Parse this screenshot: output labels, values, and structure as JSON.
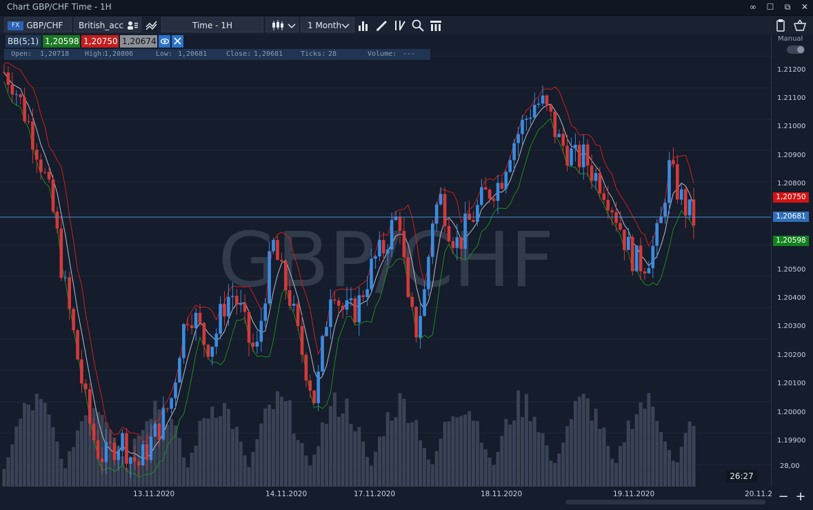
{
  "window": {
    "title": "Chart GBP/CHF Time - 1H",
    "buttons": {
      "link": "∞",
      "restore": "☐",
      "maximize": "⧉",
      "close": "✕"
    }
  },
  "toolbar": {
    "symbol_badge": "FX",
    "symbol": "GBP/CHF",
    "account": "British_acc",
    "timeframe": "Time - 1H",
    "period": "1 Month",
    "icons": [
      "compare-icon",
      "candlestick-type-icon",
      "chevron-down-icon",
      "bar-chart-icon",
      "draw-icon",
      "fibonacci-icon",
      "zoom-icon",
      "template-icon",
      "clipboard-icon",
      "basket-icon"
    ]
  },
  "indicator": {
    "name": "BB(5;1)",
    "lower": "1,20598",
    "upper": "1,20750",
    "middle": "1,20674"
  },
  "ohlc": {
    "open_label": "Open:",
    "open": "1,20718",
    "high_label": "High:",
    "high": "1,20806",
    "low_label": "Low:",
    "low": "1,20681",
    "close_label": "Close:",
    "close": "1,20681",
    "ticks_label": "Ticks:",
    "ticks": "28",
    "volume_label": "Volume:",
    "volume": "---"
  },
  "watermark": "GBP/CHF",
  "price_axis": {
    "mode": "Manual",
    "labels": [
      "1.21200",
      "1.21100",
      "1.21000",
      "1.20900",
      "1.20800",
      "1.20500",
      "1.20400",
      "1.20300",
      "1.20200",
      "1.20100",
      "1.20000",
      "1.19900"
    ],
    "current_price": "1,20681",
    "upper_band_tag": "1,20750",
    "lower_band_tag": "1,20598",
    "volume_label": "28,00"
  },
  "time_axis": {
    "labels": [
      "13.11.2020",
      "14.11.2020",
      "17.11.2020",
      "18.11.2020",
      "19.11.2020",
      "20.11.2"
    ],
    "countdown": "26:27"
  },
  "zoom": {
    "minus": "−",
    "plus": "+"
  },
  "colors": {
    "up": "#3b8be0",
    "down": "#d23a3a",
    "upper_band": "#d01e1e",
    "lower_band": "#1f8a1f",
    "middle_band": "#b9bfc8",
    "volume": "#3a4356",
    "price_line": "#4a90d0"
  },
  "chart_data": {
    "type": "candlestick",
    "symbol": "GBP/CHF",
    "timeframe": "1H",
    "ylim": [
      1.1983,
      1.2127
    ],
    "x_labels": [
      "13.11.2020",
      "14.11.2020",
      "17.11.2020",
      "18.11.2020",
      "19.11.2020",
      "20.11.2"
    ],
    "indicator": "BB(5;1)",
    "close_path": [
      1.2115,
      1.2112,
      1.2105,
      1.2098,
      1.209,
      1.208,
      1.2068,
      1.205,
      1.2035,
      1.202,
      1.2005,
      1.1995,
      1.1992,
      1.1996,
      1.1998,
      1.1993,
      1.199,
      1.1995,
      1.2,
      1.2005,
      1.2012,
      1.203,
      1.204,
      1.2035,
      1.2028,
      1.203,
      1.204,
      1.2045,
      1.204,
      1.203,
      1.2025,
      1.2045,
      1.206,
      1.205,
      1.2043,
      1.203,
      1.202,
      1.201,
      1.203,
      1.205,
      1.204,
      1.2038,
      1.204,
      1.2048,
      1.2055,
      1.2058,
      1.2065,
      1.207,
      1.204,
      1.2033,
      1.2045,
      1.207,
      1.2075,
      1.2065,
      1.206,
      1.2066,
      1.207,
      1.2075,
      1.2078,
      1.208,
      1.209,
      1.2095,
      1.21,
      1.2105,
      1.2105,
      1.21,
      1.2093,
      1.209,
      1.2087,
      1.2088,
      1.2083,
      1.208,
      1.2075,
      1.2068,
      1.206,
      1.2055,
      1.2054,
      1.2058,
      1.2065,
      1.2085,
      1.2078,
      1.2072,
      1.2068
    ],
    "volume_max": 28.0
  }
}
